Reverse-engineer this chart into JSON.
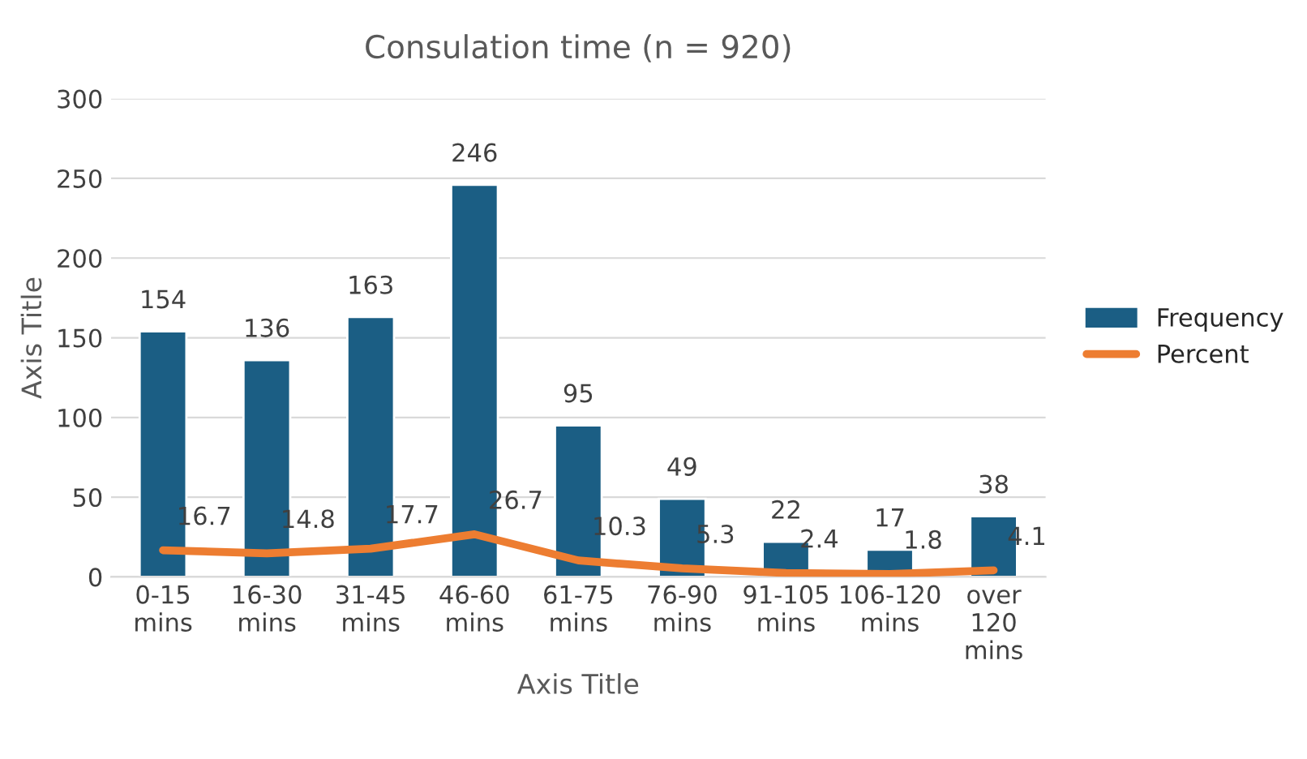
{
  "chart_data": {
    "type": "bar",
    "title": "Consulation time (n = 920)",
    "xlabel": "Axis Title",
    "ylabel": "Axis Title",
    "categories": [
      "0-15\nmins",
      "16-30\nmins",
      "31-45\nmins",
      "46-60\nmins",
      "61-75\nmins",
      "76-90\nmins",
      "91-105\nmins",
      "106-120\nmins",
      "over\n120\nmins"
    ],
    "series": [
      {
        "name": "Frequency",
        "color": "#1b5e84",
        "values": [
          154,
          136,
          163,
          246,
          95,
          49,
          22,
          17,
          38
        ]
      },
      {
        "name": "Percent",
        "type": "line",
        "color": "#ed7d31",
        "values": [
          16.7,
          14.8,
          17.7,
          26.7,
          10.3,
          5.3,
          2.4,
          1.8,
          4.1
        ]
      }
    ],
    "ylim": [
      0,
      300
    ],
    "yticks": [
      0,
      50,
      100,
      150,
      200,
      250,
      300
    ],
    "grid": "y",
    "legend": "right",
    "data_labels": true,
    "marker": "none",
    "line_style": "solid"
  }
}
